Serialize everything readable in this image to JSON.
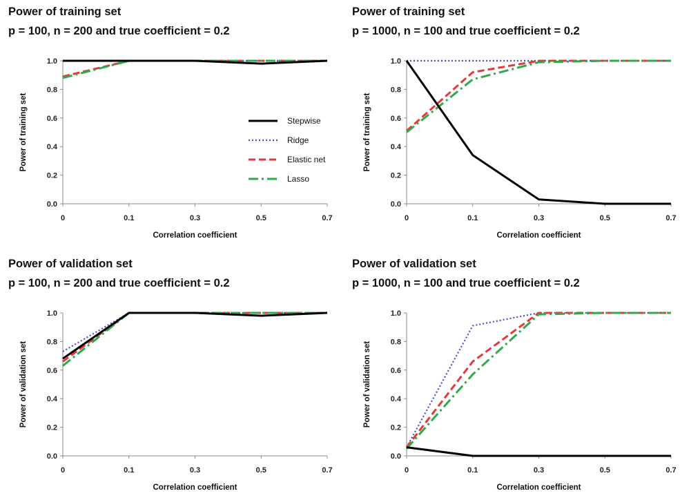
{
  "chart_data": [
    {
      "type": "line",
      "title": "Power of training set",
      "subtitle": "p = 100, n = 200 and true coefficient = 0.2",
      "xlabel": "Correlation coefficient",
      "ylabel": "Power of training set",
      "x": [
        "0",
        "0.1",
        "0.3",
        "0.5",
        "0.7"
      ],
      "ylim": [
        0,
        1
      ],
      "yticks": [
        "0.0",
        "0.2",
        "0.4",
        "0.6",
        "0.8",
        "1.0"
      ],
      "legend": true,
      "series": [
        {
          "name": "Stepwise",
          "values": [
            1.0,
            1.0,
            1.0,
            0.98,
            1.0
          ]
        },
        {
          "name": "Ridge",
          "values": [
            1.0,
            1.0,
            1.0,
            1.0,
            1.0
          ]
        },
        {
          "name": "Elastic net",
          "values": [
            0.89,
            1.0,
            1.0,
            1.0,
            1.0
          ]
        },
        {
          "name": "Lasso",
          "values": [
            0.88,
            1.0,
            1.0,
            1.0,
            1.0
          ]
        }
      ]
    },
    {
      "type": "line",
      "title": "Power of training set",
      "subtitle": "p = 1000, n = 100 and true coefficient = 0.2",
      "xlabel": "Correlation coefficient",
      "ylabel": "Power of training set",
      "x": [
        "0",
        "0.1",
        "0.3",
        "0.5",
        "0.7"
      ],
      "ylim": [
        0,
        1
      ],
      "yticks": [
        "0.0",
        "0.2",
        "0.4",
        "0.6",
        "0.8",
        "1.0"
      ],
      "legend": false,
      "series": [
        {
          "name": "Stepwise",
          "values": [
            1.0,
            0.34,
            0.03,
            0.0,
            0.0
          ]
        },
        {
          "name": "Ridge",
          "values": [
            1.0,
            1.0,
            1.0,
            1.0,
            1.0
          ]
        },
        {
          "name": "Elastic net",
          "values": [
            0.51,
            0.92,
            1.0,
            1.0,
            1.0
          ]
        },
        {
          "name": "Lasso",
          "values": [
            0.5,
            0.87,
            0.99,
            1.0,
            1.0
          ]
        }
      ]
    },
    {
      "type": "line",
      "title": "Power of validation set",
      "subtitle": "p = 100, n = 200 and true coefficient = 0.2",
      "xlabel": "Correlation coefficient",
      "ylabel": "Power of validation set",
      "x": [
        "0",
        "0.1",
        "0.3",
        "0.5",
        "0.7"
      ],
      "ylim": [
        0,
        1
      ],
      "yticks": [
        "0.0",
        "0.2",
        "0.4",
        "0.6",
        "0.8",
        "1.0"
      ],
      "legend": false,
      "series": [
        {
          "name": "Stepwise",
          "values": [
            0.68,
            1.0,
            1.0,
            0.98,
            1.0
          ]
        },
        {
          "name": "Ridge",
          "values": [
            0.73,
            1.0,
            1.0,
            1.0,
            1.0
          ]
        },
        {
          "name": "Elastic net",
          "values": [
            0.66,
            1.0,
            1.0,
            1.0,
            1.0
          ]
        },
        {
          "name": "Lasso",
          "values": [
            0.63,
            1.0,
            1.0,
            1.0,
            1.0
          ]
        }
      ]
    },
    {
      "type": "line",
      "title": "Power of validation set",
      "subtitle": "p = 1000, n = 100 and true coefficient = 0.2",
      "xlabel": "Correlation coefficient",
      "ylabel": "Power of validation set",
      "x": [
        "0",
        "0.1",
        "0.3",
        "0.5",
        "0.7"
      ],
      "ylim": [
        0,
        1
      ],
      "yticks": [
        "0.0",
        "0.2",
        "0.4",
        "0.6",
        "0.8",
        "1.0"
      ],
      "legend": false,
      "series": [
        {
          "name": "Stepwise",
          "values": [
            0.06,
            0.0,
            0.0,
            0.0,
            0.0
          ]
        },
        {
          "name": "Ridge",
          "values": [
            0.06,
            0.91,
            1.0,
            1.0,
            1.0
          ]
        },
        {
          "name": "Elastic net",
          "values": [
            0.06,
            0.66,
            1.0,
            1.0,
            1.0
          ]
        },
        {
          "name": "Lasso",
          "values": [
            0.05,
            0.57,
            0.99,
            1.0,
            1.0
          ]
        }
      ]
    }
  ],
  "series_styles": {
    "Stepwise": {
      "color": "#000000",
      "dash": "solid"
    },
    "Ridge": {
      "color": "#4a4ec8",
      "dash": "dotted"
    },
    "Elastic net": {
      "color": "#e23a3a",
      "dash": "dashed"
    },
    "Lasso": {
      "color": "#2eaa4a",
      "dash": "dash-dot"
    }
  }
}
